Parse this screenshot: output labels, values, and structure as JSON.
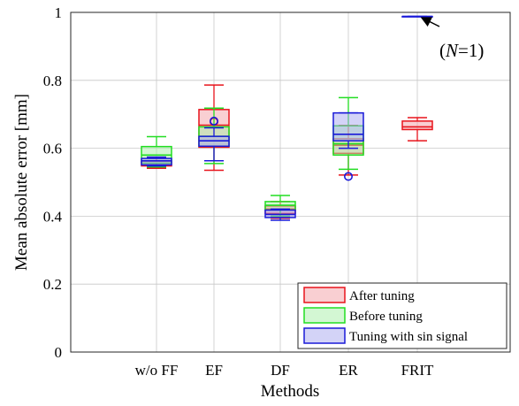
{
  "chart_data": {
    "type": "box",
    "title": "",
    "xlabel": "Methods",
    "ylabel": "Mean absolute error [mm]",
    "ylim": [
      0,
      1
    ],
    "yticks": [
      "0",
      "0.2",
      "0.4",
      "0.6",
      "0.8",
      "1"
    ],
    "yticks_values": [
      0,
      0.2,
      0.4,
      0.6,
      0.8,
      1
    ],
    "categories": [
      "w/o FF",
      "EF",
      "DF",
      "ER",
      "FRIT"
    ],
    "grid": true,
    "legend_position": "bottom-right",
    "series": [
      {
        "name": "After tuning",
        "color": "#e8141c",
        "fill": "#f4a0a6",
        "boxes": [
          {
            "category": "w/o FF",
            "whisker_low": 0.541,
            "q1": 0.548,
            "median": 0.556,
            "q3": 0.562,
            "whisker_high": 0.571,
            "outliers": []
          },
          {
            "category": "EF",
            "whisker_low": 0.535,
            "q1": 0.603,
            "median": 0.668,
            "q3": 0.714,
            "whisker_high": 0.786,
            "outliers": [
              0.678
            ]
          },
          {
            "category": "DF",
            "whisker_low": 0.394,
            "q1": 0.408,
            "median": 0.421,
            "q3": 0.43,
            "whisker_high": 0.443,
            "outliers": []
          },
          {
            "category": "ER",
            "whisker_low": 0.521,
            "q1": 0.585,
            "median": 0.609,
            "q3": 0.628,
            "whisker_high": 0.667,
            "outliers": []
          },
          {
            "category": "FRIT",
            "whisker_low": 0.622,
            "q1": 0.655,
            "median": 0.663,
            "q3": 0.68,
            "whisker_high": 0.69,
            "outliers": []
          }
        ]
      },
      {
        "name": "Before tuning",
        "color": "#22dd22",
        "fill": "#a8f0a8",
        "boxes": [
          {
            "category": "w/o FF",
            "whisker_low": 0.545,
            "q1": 0.556,
            "median": 0.58,
            "q3": 0.605,
            "whisker_high": 0.634,
            "outliers": []
          },
          {
            "category": "EF",
            "whisker_low": 0.555,
            "q1": 0.606,
            "median": 0.635,
            "q3": 0.663,
            "whisker_high": 0.718,
            "outliers": []
          },
          {
            "category": "DF",
            "whisker_low": 0.4,
            "q1": 0.418,
            "median": 0.432,
            "q3": 0.443,
            "whisker_high": 0.461,
            "outliers": []
          },
          {
            "category": "ER",
            "whisker_low": 0.538,
            "q1": 0.58,
            "median": 0.613,
            "q3": 0.666,
            "whisker_high": 0.749,
            "outliers": []
          }
        ]
      },
      {
        "name": "Tuning with sin signal",
        "color": "#1a1ad9",
        "fill": "#a8a8f0",
        "boxes": [
          {
            "category": "w/o FF",
            "whisker_low": 0.548,
            "q1": 0.551,
            "median": 0.563,
            "q3": 0.57,
            "whisker_high": 0.574,
            "outliers": []
          },
          {
            "category": "EF",
            "whisker_low": 0.563,
            "q1": 0.606,
            "median": 0.622,
            "q3": 0.635,
            "whisker_high": 0.66,
            "outliers": [
              0.68
            ]
          },
          {
            "category": "DF",
            "whisker_low": 0.388,
            "q1": 0.396,
            "median": 0.405,
            "q3": 0.418,
            "whisker_high": 0.421,
            "outliers": []
          },
          {
            "category": "ER",
            "whisker_low": 0.6,
            "q1": 0.622,
            "median": 0.641,
            "q3": 0.704,
            "whisker_high": 0.704,
            "outliers": [
              0.517
            ]
          },
          {
            "category": "FRIT",
            "whisker_low": 0.988,
            "q1": 0.988,
            "median": 0.988,
            "q3": 0.988,
            "whisker_high": 0.988,
            "outliers": []
          }
        ]
      }
    ],
    "annotation": {
      "prefix": "(",
      "italic": "N",
      "suffix": "=1)",
      "points_to": {
        "category": "FRIT",
        "value": 0.988
      }
    }
  }
}
